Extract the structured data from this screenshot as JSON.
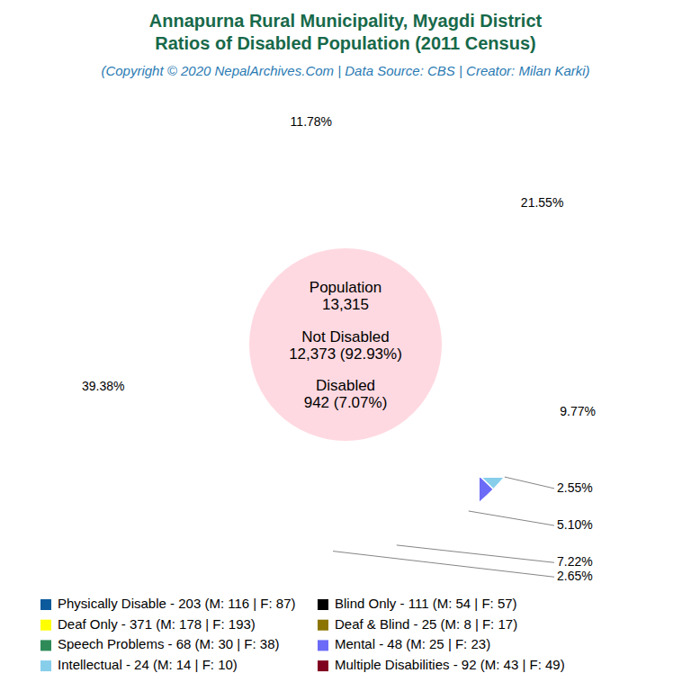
{
  "chart_data": {
    "type": "pie",
    "title": [
      "Annapurna Rural Municipality, Myagdi District",
      "Ratios of Disabled Population (2011 Census)"
    ],
    "subtitle": "(Copyright © 2020 NepalArchives.Com | Data Source: CBS | Creator: Milan Karki)",
    "annotations": [
      "Population",
      "13,315",
      "Not Disabled",
      "12,373 (92.93%)",
      "Disabled",
      "942 (7.07%)"
    ],
    "categories": [
      "Physically Disable - 203 (M: 116 | F: 87)",
      "Blind Only - 111 (M: 54 | F: 57)",
      "Deaf Only - 371 (M: 178 | F: 193)",
      "Deaf & Blind - 25 (M: 8 | F: 17)",
      "Speech Problems - 68 (M: 30 | F: 38)",
      "Mental - 48 (M: 25 | F: 23)",
      "Intellectual - 24 (M: 14 | F: 10)",
      "Multiple Disabilities - 92 (M: 43 | F: 49)"
    ],
    "values": [
      21.55,
      11.78,
      39.38,
      2.65,
      7.22,
      5.1,
      2.55,
      9.77
    ],
    "value_labels": [
      "21.55%",
      "11.78%",
      "39.38%",
      "2.65%",
      "7.22%",
      "5.10%",
      "2.55%",
      "9.77%"
    ],
    "colors": [
      "#0b5a9c",
      "#000000",
      "#ffff00",
      "#8b7500",
      "#2e8b57",
      "#6b6bf7",
      "#87ceeb",
      "#800020"
    ],
    "data_labels": true,
    "legend": "bottom"
  }
}
